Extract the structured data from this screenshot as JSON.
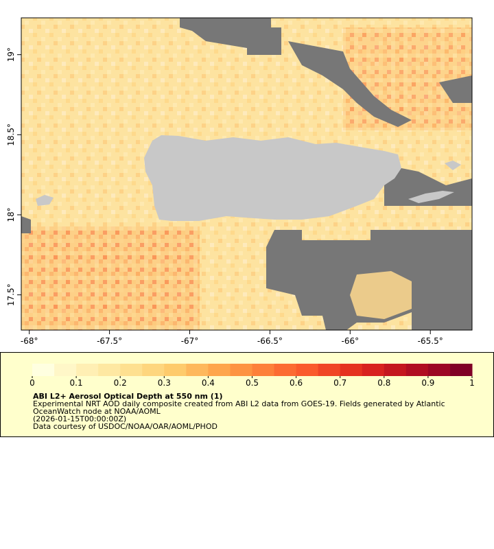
{
  "map": {
    "xlim": [
      -68.05,
      -65.24
    ],
    "ylim": [
      17.28,
      19.23
    ],
    "xticks": [
      {
        "value": -68,
        "label": "-68°"
      },
      {
        "value": -67.5,
        "label": "-67.5°"
      },
      {
        "value": -67,
        "label": "-67°"
      },
      {
        "value": -66.5,
        "label": "-66.5°"
      },
      {
        "value": -66,
        "label": "-66°"
      },
      {
        "value": -65.5,
        "label": "-65.5°"
      }
    ],
    "yticks": [
      {
        "value": 19,
        "label": "19°"
      },
      {
        "value": 18.5,
        "label": "18.5°"
      },
      {
        "value": 18,
        "label": "18°"
      },
      {
        "value": 17.5,
        "label": "17.5°"
      }
    ]
  },
  "colorbar": {
    "lim": [
      0,
      1
    ],
    "ticks": [
      0,
      0.1,
      0.2,
      0.3,
      0.4,
      0.5,
      0.6,
      0.7,
      0.8,
      0.9,
      1
    ],
    "colors": [
      "#ffffe0",
      "#fff7c8",
      "#ffefb4",
      "#fee8a2",
      "#fee090",
      "#fed67e",
      "#fecb6c",
      "#feb85c",
      "#fea54c",
      "#fd9342",
      "#fd803a",
      "#fc6b32",
      "#fa5a2c",
      "#f04526",
      "#e53220",
      "#d8221f",
      "#c4161f",
      "#b00d22",
      "#9c0624",
      "#800026"
    ]
  },
  "legend": {
    "title": "ABI L2+ Aerosol Optical Depth at 550 nm (1)",
    "lines": [
      "Experimental NRT AOD daily composite created from ABI L2 data from GOES-19. Fields generated by Atlantic",
      "OceanWatch node at NOAA/AOML",
      "(2026-01-15T00:00:00Z)",
      "Data courtesy of USDOC/NOAA/OAR/AOML/PHOD"
    ]
  }
}
